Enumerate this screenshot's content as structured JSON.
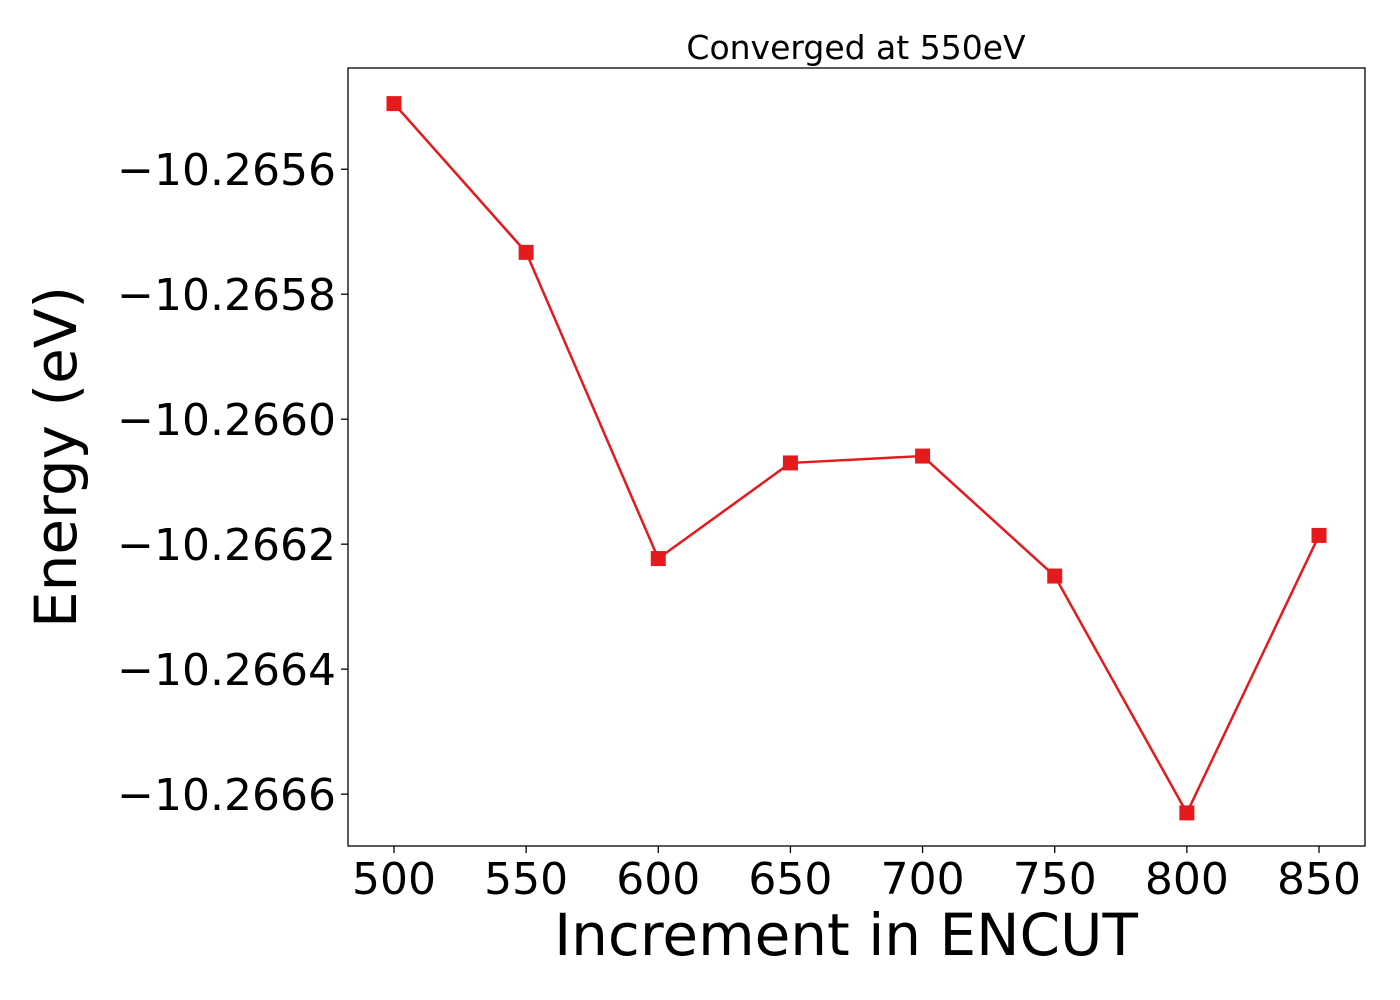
{
  "chart_data": {
    "type": "line",
    "title": "Converged at 550eV",
    "xlabel": "Increment in ENCUT",
    "ylabel": "Energy (eV)",
    "x": [
      500,
      550,
      600,
      650,
      700,
      750,
      800,
      850
    ],
    "series": [
      {
        "values": [
          -10.265495,
          -10.265733,
          -10.266223,
          -10.26607,
          -10.266059,
          -10.266251,
          -10.26663,
          -10.266186
        ],
        "color": "#e41a1c",
        "marker": "square"
      }
    ],
    "xticks": [
      500,
      550,
      600,
      650,
      700,
      750,
      800,
      850
    ],
    "xtick_labels": [
      "500",
      "550",
      "600",
      "650",
      "700",
      "750",
      "800",
      "850"
    ],
    "yticks": [
      -10.2656,
      -10.2658,
      -10.266,
      -10.2662,
      -10.2664,
      -10.2666
    ],
    "ytick_labels": [
      "−10.2656",
      "−10.2658",
      "−10.2660",
      "−10.2662",
      "−10.2664",
      "−10.2666"
    ],
    "xlim": [
      482.6,
      867.4
    ],
    "ylim": [
      -10.266683,
      -10.265438
    ],
    "grid": false,
    "legend": "none"
  }
}
